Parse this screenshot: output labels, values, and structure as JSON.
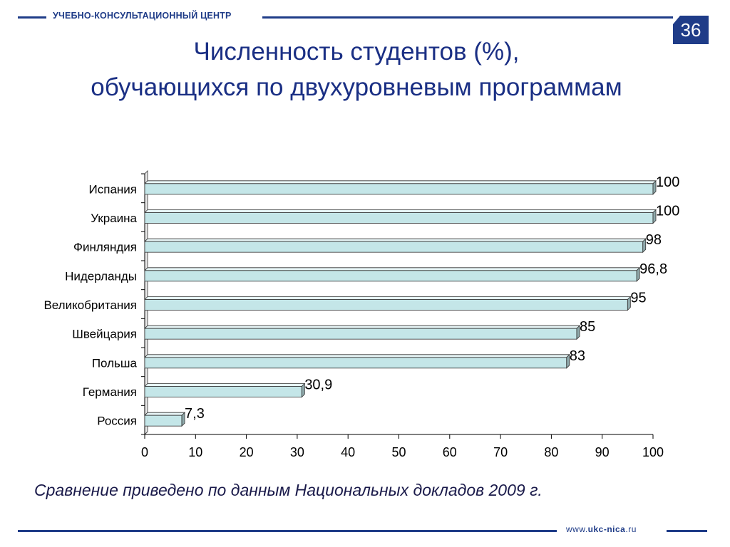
{
  "header": {
    "org_name": "УЧЕБНО-КОНСУЛЬТАЦИОННЫЙ ЦЕНТР",
    "page_number": "36"
  },
  "title": {
    "line1": "Численность студентов (%),",
    "line2": "обучающихся по двухуровневым программам"
  },
  "caption": "Сравнение приведено по данным Национальных докладов 2009 г.",
  "footer": {
    "url_prefix": "www.",
    "url_domain": "ukc-nica",
    "url_suffix": ".ru"
  },
  "colors": {
    "brand": "#1f3c88",
    "bar_fill": "#c4e6e8",
    "bar_side": "#8fa9ab",
    "bar_stroke": "#333333"
  },
  "chart_data": {
    "type": "bar",
    "orientation": "horizontal",
    "categories": [
      "Испания",
      "Украина",
      "Финляндия",
      "Нидерланды",
      "Великобритания",
      "Швейцария",
      "Польша",
      "Германия",
      "Россия"
    ],
    "values": [
      100,
      100,
      98,
      96.8,
      95,
      85,
      83,
      30.9,
      7.3
    ],
    "value_labels": [
      "100",
      "100",
      "98",
      "96,8",
      "95",
      "85",
      "83",
      "30,9",
      "7,3"
    ],
    "xlim": [
      0,
      100
    ],
    "xticks": [
      0,
      10,
      20,
      30,
      40,
      50,
      60,
      70,
      80,
      90,
      100
    ],
    "grid": false,
    "legend": false
  }
}
